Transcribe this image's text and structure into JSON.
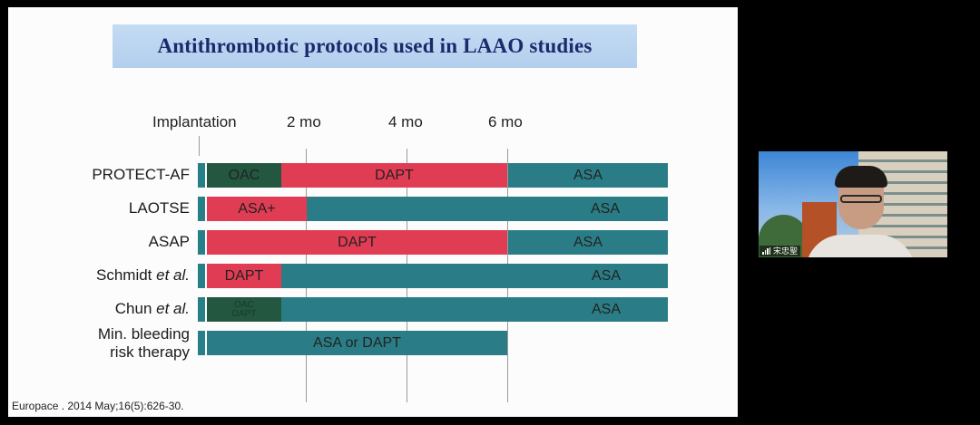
{
  "slide": {
    "title": "Antithrombotic protocols used in LAAO studies",
    "timeline_labels": [
      "Implantation",
      "2 mo",
      "4 mo",
      "6 mo"
    ],
    "rows": [
      {
        "label": "PROTECT-AF",
        "segments": [
          "OAC",
          "DAPT",
          "ASA"
        ]
      },
      {
        "label": "LAOTSE",
        "segments": [
          "ASA+",
          "ASA"
        ]
      },
      {
        "label": "ASAP",
        "segments": [
          "DAPT",
          "ASA"
        ]
      },
      {
        "label": "Schmidt",
        "label_italic": "et al.",
        "segments": [
          "DAPT",
          "ASA"
        ]
      },
      {
        "label": "Chun",
        "label_italic": "et al.",
        "segments": [
          "OAC",
          "DAPT",
          "ASA"
        ]
      },
      {
        "label_line1": "Min. bleeding",
        "label_line2": "risk therapy",
        "segments": [
          "ASA or DAPT"
        ]
      }
    ],
    "citation": "Europace . 2014 May;16(5):626-30.",
    "colors": {
      "asa": "#2a7d86",
      "dapt": "#e03c53",
      "oac": "#23573f",
      "title_bg": "#b9d3f0",
      "title_text": "#1a2a6b"
    }
  },
  "video": {
    "participant_name": "宋忠聖",
    "icons": [
      "signal-bars-icon"
    ]
  }
}
